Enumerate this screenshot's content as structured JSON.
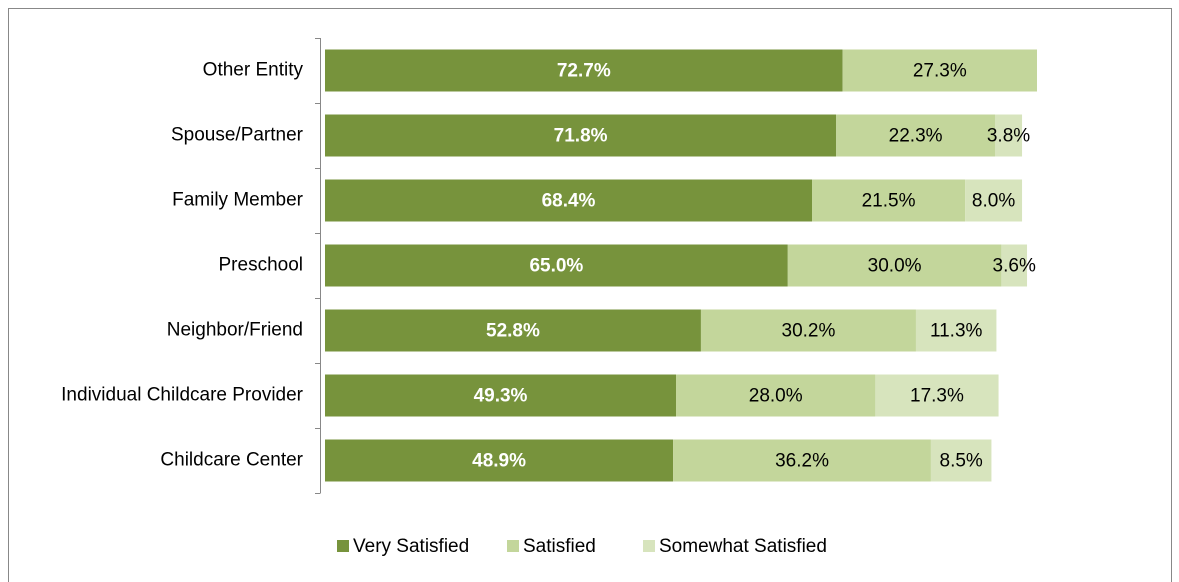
{
  "chart_data": {
    "type": "stacked-barh",
    "categories": [
      "Other Entity",
      "Spouse/Partner",
      "Family Member",
      "Preschool",
      "Neighbor/Friend",
      "Individual Childcare Provider",
      "Childcare Center"
    ],
    "xlim": [
      0,
      100
    ],
    "legend": "bottom",
    "series": [
      {
        "name": "Very Satisfied",
        "color": "#77933c",
        "values": [
          72.7,
          71.8,
          68.4,
          65.0,
          52.8,
          49.3,
          48.9
        ],
        "value_labels": [
          "72.7%",
          "71.8%",
          "68.4%",
          "65.0%",
          "52.8%",
          "49.3%",
          "48.9%"
        ]
      },
      {
        "name": "Satisfied",
        "color": "#c3d69b",
        "values": [
          27.3,
          22.3,
          21.5,
          30.0,
          30.2,
          28.0,
          36.2
        ],
        "value_labels": [
          "27.3%",
          "22.3%",
          "21.5%",
          "30.0%",
          "30.2%",
          "28.0%",
          "36.2%"
        ]
      },
      {
        "name": "Somewhat Satisfied",
        "color": "#d7e4bd",
        "values": [
          null,
          3.8,
          8.0,
          3.6,
          11.3,
          17.3,
          8.5
        ],
        "value_labels": [
          null,
          "3.8%",
          "8.0%",
          "3.6%",
          "11.3%",
          "17.3%",
          "8.5%"
        ]
      }
    ]
  }
}
